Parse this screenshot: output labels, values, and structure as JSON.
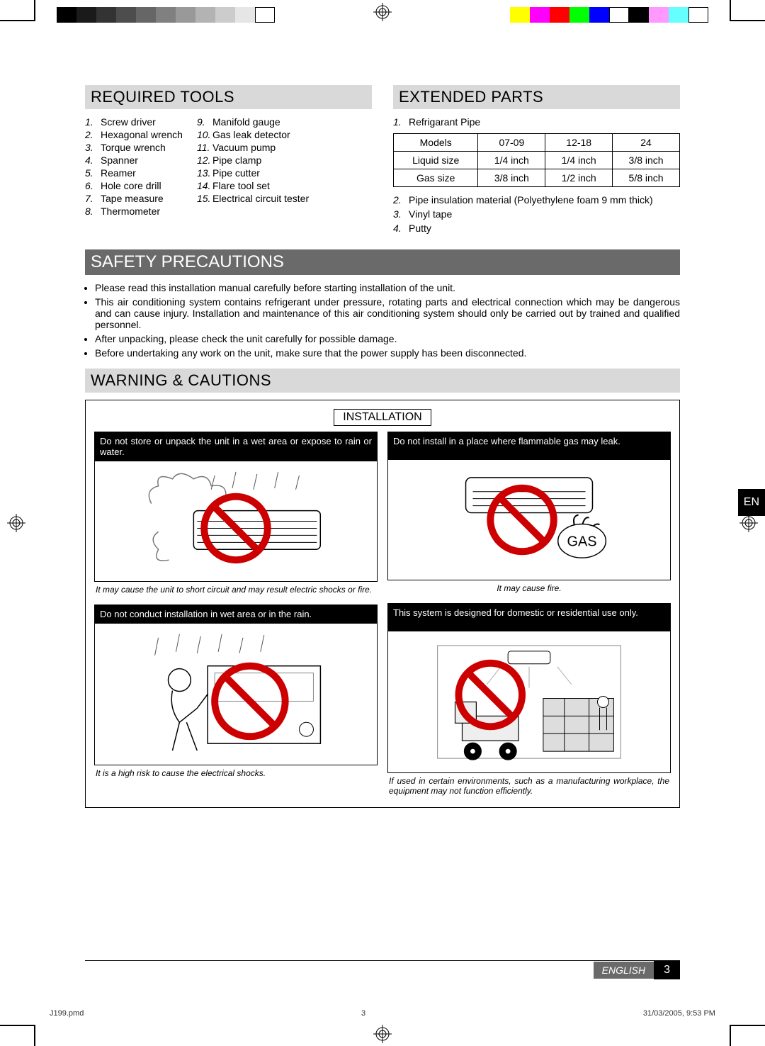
{
  "colorbar_top_left": [
    "#000000",
    "#1a1a1a",
    "#333333",
    "#4d4d4d",
    "#666666",
    "#808080",
    "#999999",
    "#b3b3b3",
    "#cccccc",
    "#e6e6e6",
    "#ffffff"
  ],
  "colorbar_top_right": [
    "#ffff00",
    "#ff00ff",
    "#ff0000",
    "#00ff00",
    "#0000ff",
    "#ffffff",
    "#000000",
    "#ff99ff",
    "#66ffff",
    "#ffffff"
  ],
  "sections": {
    "required_tools": "REQUIRED TOOLS",
    "extended_parts": "EXTENDED PARTS",
    "safety": "SAFETY PRECAUTIONS",
    "warnings": "WARNING & CAUTIONS",
    "installation_label": "INSTALLATION"
  },
  "tools_col1": [
    {
      "n": "1.",
      "t": "Screw driver"
    },
    {
      "n": "2.",
      "t": "Hexagonal wrench"
    },
    {
      "n": "3.",
      "t": "Torque wrench"
    },
    {
      "n": "4.",
      "t": "Spanner"
    },
    {
      "n": "5.",
      "t": "Reamer"
    },
    {
      "n": "6.",
      "t": "Hole core drill"
    },
    {
      "n": "7.",
      "t": "Tape measure"
    },
    {
      "n": "8.",
      "t": "Thermometer"
    }
  ],
  "tools_col2": [
    {
      "n": "9.",
      "t": "Manifold gauge"
    },
    {
      "n": "10.",
      "t": "Gas leak detector"
    },
    {
      "n": "11.",
      "t": "Vacuum pump"
    },
    {
      "n": "12.",
      "t": "Pipe clamp"
    },
    {
      "n": "13.",
      "t": "Pipe cutter"
    },
    {
      "n": "14.",
      "t": "Flare tool set"
    },
    {
      "n": "15.",
      "t": "Electrical circuit tester"
    }
  ],
  "extended_items": [
    {
      "n": "1.",
      "t": "Refrigarant Pipe"
    },
    {
      "n": "2.",
      "t": "Pipe insulation material (Polyethylene foam 9 mm thick)"
    },
    {
      "n": "3.",
      "t": "Vinyl tape"
    },
    {
      "n": "4.",
      "t": "Putty"
    }
  ],
  "pipe_table": {
    "columns": [
      "Models",
      "07-09",
      "12-18",
      "24"
    ],
    "rows": [
      [
        "Liquid size",
        "1/4 inch",
        "1/4 inch",
        "3/8 inch"
      ],
      [
        "Gas size",
        "3/8 inch",
        "1/2 inch",
        "5/8 inch"
      ]
    ]
  },
  "safety_bullets": [
    "Please read this installation manual carefully before starting installation of the unit.",
    "This air conditioning system contains refrigerant under pressure, rotating parts and electrical connection which may be dangerous and can cause injury. Installation and maintenance of this air conditioning system should only be carried out by trained and qualified personnel.",
    "After unpacking, please check the unit carefully for possible damage.",
    "Before undertaking any work on the unit, make sure that the power supply has been disconnected."
  ],
  "warnings": {
    "w1": {
      "h": "Do not store or unpack the unit in a wet area or expose to rain or water.",
      "c": "It may cause the unit to short circuit and may result electric shocks or fire."
    },
    "w2": {
      "h": "Do not install in a place where flammable gas may leak.",
      "c": "It may cause fire.",
      "gas": "GAS"
    },
    "w3": {
      "h": "Do not conduct installation in wet area or in the rain.",
      "c": "It is a high risk to cause the electrical shocks."
    },
    "w4": {
      "h": "This system is designed for domestic or residential use only.",
      "c": "If used in certain environments, such as a manufacturing workplace, the equipment may not function efficiently."
    }
  },
  "lang_tab": "EN",
  "footer": {
    "lang": "ENGLISH",
    "page": "3"
  },
  "meta": {
    "file": "J199.pmd",
    "pg": "3",
    "date": "31/03/2005, 9:53 PM"
  },
  "background_color": "#ffffff",
  "section_bg": "#d9d9d9",
  "section_dark_bg": "#6a6a6a",
  "text_color": "#000000",
  "prohibit_color": "#cc0000"
}
